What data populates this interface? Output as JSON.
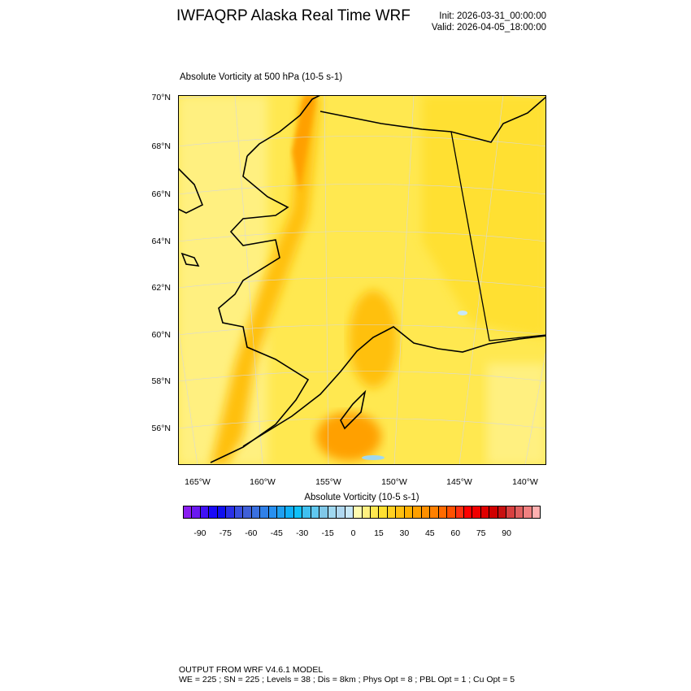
{
  "header": {
    "title": "IWFAQRP Alaska Real Time WRF",
    "init": "Init: 2026-03-31_00:00:00",
    "valid": "Valid: 2026-04-05_18:00:00"
  },
  "plot": {
    "subtitle": "Absolute Vorticity at 500 hPa   (10-5 s-1)",
    "lat_labels": [
      "70°N",
      "68°N",
      "66°N",
      "64°N",
      "62°N",
      "60°N",
      "58°N",
      "56°N"
    ],
    "lon_labels": [
      "165°W",
      "160°W",
      "155°W",
      "150°W",
      "145°W",
      "140°W"
    ]
  },
  "colorbar": {
    "title": "Absolute Vorticity  (10-5 s-1)",
    "labels": [
      "-90",
      "-75",
      "-60",
      "-45",
      "-30",
      "-15",
      "0",
      "15",
      "30",
      "45",
      "60",
      "75",
      "90"
    ],
    "colors": [
      "#8a1ef0",
      "#6a18f0",
      "#4010f5",
      "#1a0af8",
      "#1010f0",
      "#2a30e8",
      "#3a50e0",
      "#4060d8",
      "#3a70e0",
      "#3080e8",
      "#2890f0",
      "#20a0f0",
      "#10b0f8",
      "#10c0f8",
      "#40c0f0",
      "#60c8f0",
      "#80c8e8",
      "#a0d8f0",
      "#b0d8f0",
      "#c8e8f8",
      "#fffcb0",
      "#fff080",
      "#ffe850",
      "#ffe030",
      "#ffd020",
      "#ffc010",
      "#ffb000",
      "#ffa000",
      "#ff9000",
      "#ff8000",
      "#ff6a00",
      "#ff5000",
      "#ff3010",
      "#ff0000",
      "#f00000",
      "#e00000",
      "#d00000",
      "#c81010",
      "#d84040",
      "#e06060",
      "#f08080",
      "#ffb0b0"
    ]
  },
  "footer": {
    "line1": "OUTPUT FROM WRF V4.6.1 MODEL",
    "line2": "WE = 225 ; SN = 225 ; Levels = 38 ; Dis = 8km ; Phys Opt = 8 ; PBL Opt = 1 ; Cu Opt = 5"
  }
}
